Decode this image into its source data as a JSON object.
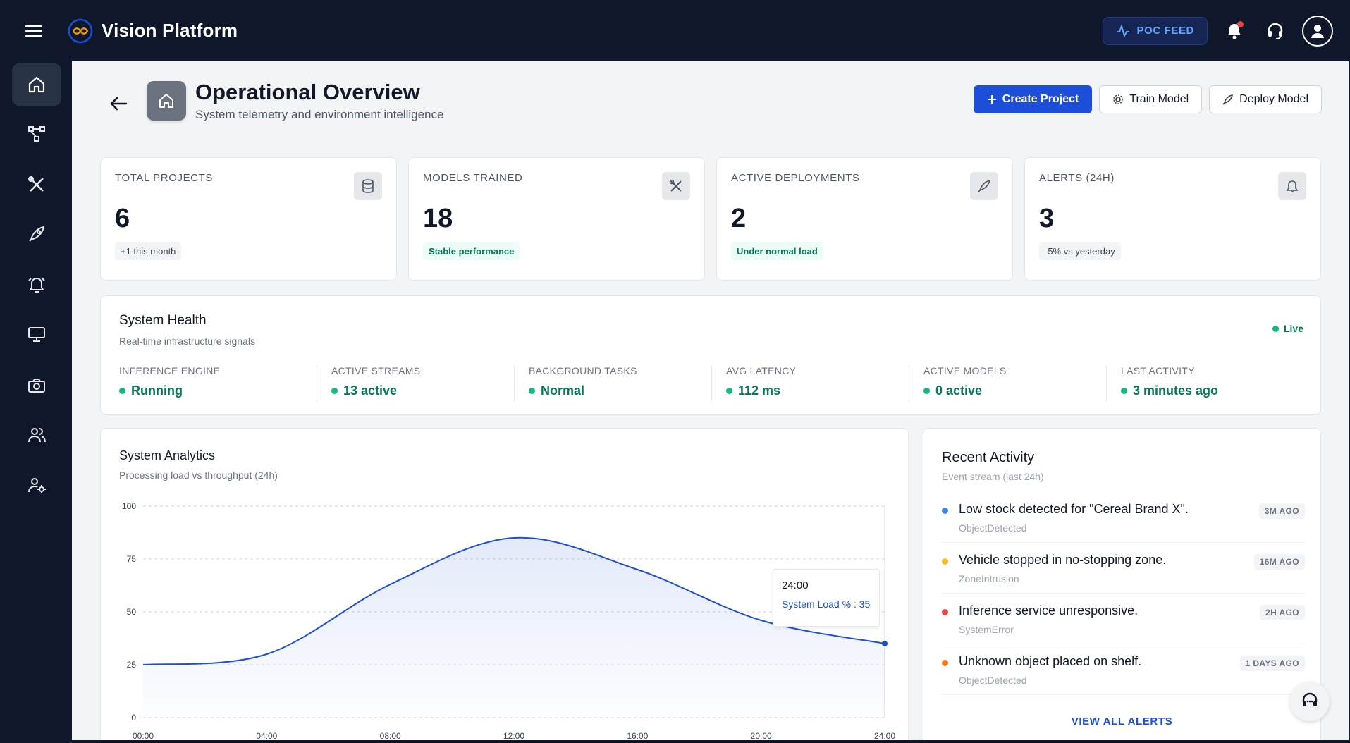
{
  "app": {
    "brand": "Vision Platform",
    "poc_feed": "POC FEED"
  },
  "header": {
    "title": "Operational Overview",
    "subtitle": "System telemetry and environment intelligence",
    "buttons": {
      "create": "Create Project",
      "train": "Train Model",
      "deploy": "Deploy Model"
    }
  },
  "kpis": [
    {
      "label": "TOTAL PROJECTS",
      "value": "6",
      "badge": "+1 this month",
      "icon": "database-icon"
    },
    {
      "label": "MODELS TRAINED",
      "value": "18",
      "badge": "Stable performance",
      "icon": "tools-icon"
    },
    {
      "label": "ACTIVE DEPLOYMENTS",
      "value": "2",
      "badge": "Under normal load",
      "icon": "rocket-icon"
    },
    {
      "label": "ALERTS (24H)",
      "value": "3",
      "badge": "-5% vs yesterday",
      "icon": "alarm-icon"
    }
  ],
  "health": {
    "title": "System Health",
    "subtitle": "Real-time infrastructure signals",
    "live": "Live",
    "stats": [
      {
        "label": "INFERENCE ENGINE",
        "value": "Running"
      },
      {
        "label": "ACTIVE STREAMS",
        "value": "13 active"
      },
      {
        "label": "BACKGROUND TASKS",
        "value": "Normal"
      },
      {
        "label": "AVG LATENCY",
        "value": "112 ms"
      },
      {
        "label": "ACTIVE MODELS",
        "value": "0 active"
      },
      {
        "label": "LAST ACTIVITY",
        "value": "3 minutes ago"
      }
    ]
  },
  "analytics": {
    "title": "System Analytics",
    "subtitle": "Processing load vs throughput (24h)",
    "tooltip": {
      "time": "24:00",
      "label": "System Load % : 35"
    }
  },
  "chart_data": {
    "type": "area",
    "x": [
      "00:00",
      "04:00",
      "08:00",
      "12:00",
      "16:00",
      "20:00",
      "24:00"
    ],
    "series": [
      {
        "name": "System Load %",
        "values": [
          25,
          30,
          63,
          85,
          70,
          46,
          35
        ]
      }
    ],
    "ylim": [
      0,
      100
    ],
    "yticks": [
      0,
      25,
      50,
      75,
      100
    ],
    "color": "#1d4ed8",
    "grid": true
  },
  "activity": {
    "title": "Recent Activity",
    "subtitle": "Event stream (last 24h)",
    "items": [
      {
        "text": "Low stock detected for \"Cereal Brand X\".",
        "type": "ObjectDetected",
        "time": "3M AGO",
        "color": "#3b82f6"
      },
      {
        "text": "Vehicle stopped in no-stopping zone.",
        "type": "ZoneIntrusion",
        "time": "16M AGO",
        "color": "#f59e0b"
      },
      {
        "text": "Inference service unresponsive.",
        "type": "SystemError",
        "time": "2H AGO",
        "color": "#ef4444"
      },
      {
        "text": "Unknown object placed on shelf.",
        "type": "ObjectDetected",
        "time": "1 DAYS AGO",
        "color": "#f97316"
      }
    ],
    "view_all": "VIEW ALL ALERTS"
  }
}
